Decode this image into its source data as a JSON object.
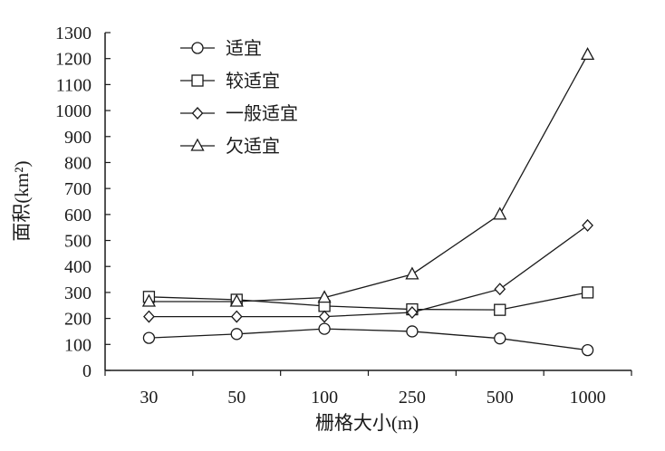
{
  "chart_data": {
    "type": "line",
    "xlabel": "栅格大小(m)",
    "ylabel": "面积(km²)",
    "categories": [
      "30",
      "50",
      "100",
      "250",
      "500",
      "1000"
    ],
    "ylim": [
      0,
      1300
    ],
    "yticks": [
      0,
      100,
      200,
      300,
      400,
      500,
      600,
      700,
      800,
      900,
      1000,
      1100,
      1200,
      1300
    ],
    "grid": false,
    "legend_position": "top-left",
    "series": [
      {
        "name": "适宜",
        "marker": "circle",
        "values": [
          125,
          140,
          160,
          150,
          123,
          78
        ]
      },
      {
        "name": "较适宜",
        "marker": "square",
        "values": [
          283,
          272,
          248,
          235,
          233,
          300
        ]
      },
      {
        "name": "一般适宜",
        "marker": "diamond",
        "values": [
          207,
          207,
          207,
          223,
          313,
          558
        ]
      },
      {
        "name": "欠适宜",
        "marker": "triangle",
        "values": [
          265,
          265,
          280,
          370,
          600,
          1215
        ]
      }
    ],
    "colors": {
      "line": "#1a1a1a",
      "marker_fill": "#ffffff"
    }
  }
}
